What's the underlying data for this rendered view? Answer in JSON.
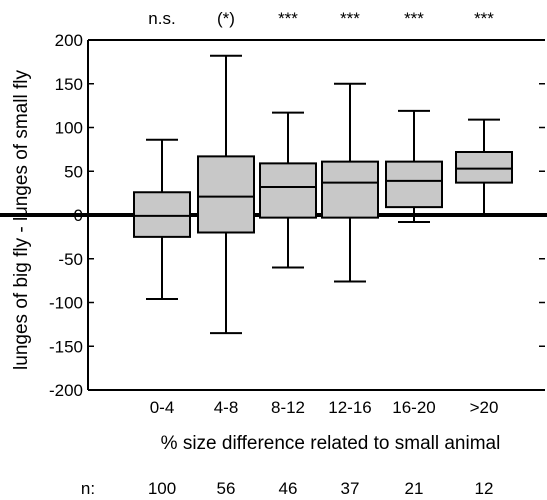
{
  "chart_data": {
    "type": "boxplot",
    "xlabel": "% size difference related to small animal",
    "ylabel": "lunges of big fly - lunges of small fly",
    "ylim": [
      -200,
      200
    ],
    "yticks": [
      -200,
      -150,
      -100,
      -50,
      0,
      50,
      100,
      150,
      200
    ],
    "categories": [
      "0-4",
      "4-8",
      "8-12",
      "12-16",
      "16-20",
      ">20"
    ],
    "boxes": [
      {
        "category": "0-4",
        "min": -96,
        "q1": -25,
        "median": -1,
        "q3": 26,
        "max": 86
      },
      {
        "category": "4-8",
        "min": -135,
        "q1": -20,
        "median": 21,
        "q3": 67,
        "max": 182
      },
      {
        "category": "8-12",
        "min": -60,
        "q1": -3,
        "median": 32,
        "q3": 59,
        "max": 117
      },
      {
        "category": "12-16",
        "min": -76,
        "q1": -3,
        "median": 37,
        "q3": 61,
        "max": 150
      },
      {
        "category": "16-20",
        "min": -8,
        "q1": 9,
        "median": 39,
        "q3": 61,
        "max": 119
      },
      {
        "category": ">20",
        "min": 0,
        "q1": 37,
        "median": 53,
        "q3": 72,
        "max": 109
      }
    ],
    "significance": [
      "n.s.",
      "(*)",
      "***",
      "***",
      "***",
      "***"
    ],
    "n_label": "n:",
    "n": [
      "100",
      "56",
      "46",
      "37",
      "21",
      "12"
    ],
    "colors": {
      "box_fill": "#c8c8c8",
      "stroke": "#000000",
      "background": "#ffffff"
    }
  }
}
